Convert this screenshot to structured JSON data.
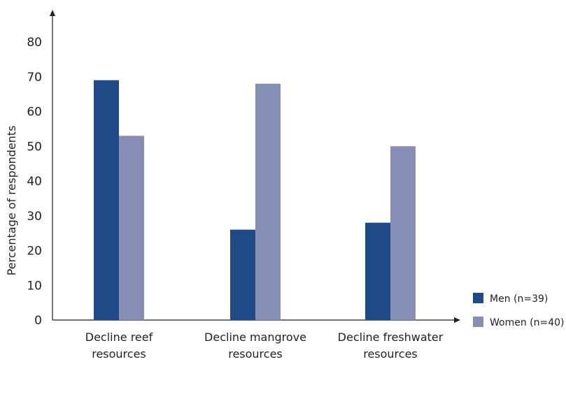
{
  "chart_data": {
    "type": "bar",
    "title": "",
    "xlabel": "",
    "ylabel": "Percentage of respondents",
    "categories": [
      [
        "Decline reef",
        "resources"
      ],
      [
        "Decline mangrove",
        "resources"
      ],
      [
        "Decline freshwater",
        "resources"
      ]
    ],
    "series": [
      {
        "name": "Men (n=39)",
        "color": "#1f4a87",
        "values": [
          69,
          26,
          28
        ]
      },
      {
        "name": "Women (n=40)",
        "color": "#878eb6",
        "values": [
          53,
          68,
          50
        ]
      }
    ],
    "ylim": [
      0,
      80
    ],
    "yticks": [
      0,
      10,
      20,
      30,
      40,
      50,
      60,
      70,
      80
    ],
    "grid": false,
    "legend_position": "right"
  }
}
